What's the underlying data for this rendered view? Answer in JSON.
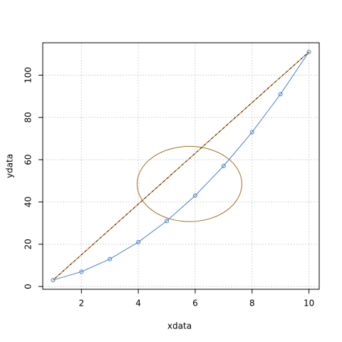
{
  "chart_data": {
    "type": "line",
    "x_label": "xdata",
    "y_label": "ydata",
    "xlim": [
      0.64,
      10.36
    ],
    "ylim": [
      -1.32,
      115.32
    ],
    "xticks": [
      2,
      4,
      6,
      8,
      10
    ],
    "yticks": [
      0,
      20,
      40,
      60,
      80,
      100
    ],
    "grid": true,
    "series": [
      {
        "color": "#4a7fcf",
        "markers": true,
        "x": [
          1,
          2,
          3,
          4,
          5,
          6,
          7,
          8,
          9,
          10
        ],
        "values": [
          3,
          7,
          13,
          21,
          31,
          43,
          57,
          73,
          91,
          111
        ]
      },
      {
        "color": "#000000",
        "x": [
          1,
          10
        ],
        "values": [
          3,
          111
        ]
      },
      {
        "color": "#ff8c00",
        "dashed": true,
        "x": [
          1,
          10
        ],
        "values": [
          3,
          111
        ]
      }
    ],
    "ellipse": {
      "cx": 5.8,
      "cy": 48.5,
      "rx": 1.84,
      "ry": 17.8,
      "color": "#a0701e"
    }
  }
}
